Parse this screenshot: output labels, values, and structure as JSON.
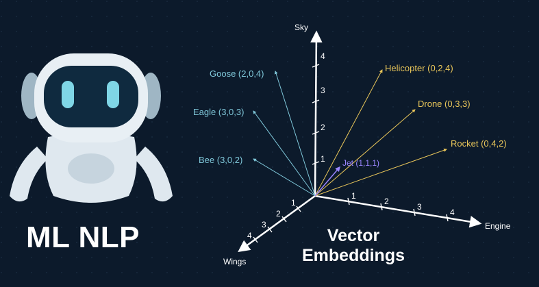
{
  "brand_text": "ML NLP",
  "title_line1": "Vector",
  "title_line2": "Embeddings",
  "axes": {
    "sky": "Sky",
    "engine": "Engine",
    "wings": "Wings"
  },
  "ticks": {
    "sky": [
      "1",
      "2",
      "3",
      "4"
    ],
    "engine": [
      "1",
      "2",
      "3",
      "4"
    ],
    "wings": [
      "1",
      "2",
      "3",
      "4"
    ]
  },
  "vectors": [
    {
      "label": "Goose (2,0,4)",
      "group": "bird",
      "color": "#7fc7d9"
    },
    {
      "label": "Eagle (3,0,3)",
      "group": "bird",
      "color": "#7fc7d9"
    },
    {
      "label": "Bee (3,0,2)",
      "group": "bird",
      "color": "#7fc7d9"
    },
    {
      "label": "Helicopter (0,2,4)",
      "group": "machine",
      "color": "#e9c65a"
    },
    {
      "label": "Drone (0,3,3)",
      "group": "machine",
      "color": "#e9c65a"
    },
    {
      "label": "Rocket (0,4,2)",
      "group": "machine",
      "color": "#e9c65a"
    },
    {
      "label": "Jet (1,1,1)",
      "group": "jet",
      "color": "#9a86ff"
    }
  ],
  "colors": {
    "background": "#0c1a2b",
    "bird": "#7fc7d9",
    "machine": "#e9c65a",
    "jet": "#9a86ff",
    "axis": "#ffffff",
    "robot_body": "#dfe8ef",
    "robot_screen": "#0f2a3f",
    "robot_eyes": "#7fd6e6"
  },
  "icons": [
    "robot-icon"
  ]
}
